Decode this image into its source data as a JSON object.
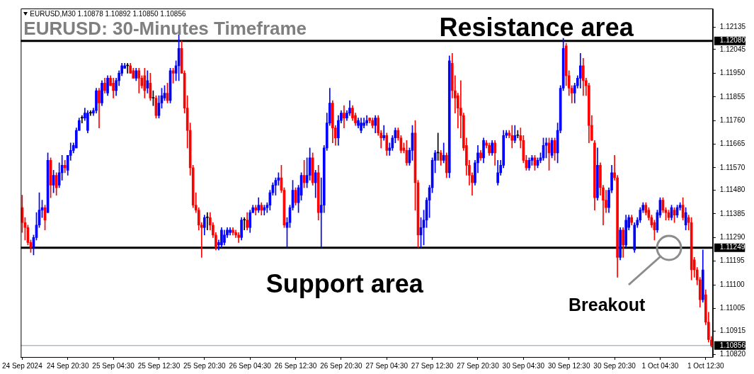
{
  "chart_data": {
    "type": "candlestick",
    "title": "EURUSD: 30-Minutes Timeframe",
    "annotations": [
      "EURUSD,M30 1.10878 1.10892 1.10850 1.10856",
      {
        "text": "Breakout",
        "y": 1.11249
      }
    ],
    "categories": [
      "24 Sep 2024",
      null,
      null,
      null,
      null,
      null,
      null,
      null,
      null,
      null,
      null,
      null,
      null,
      null,
      null,
      null,
      "24 Sep 20:30",
      null,
      null,
      null,
      null,
      null,
      null,
      null,
      null,
      null,
      null,
      null,
      null,
      null,
      null,
      null,
      "25 Sep 04:30",
      null,
      null,
      null,
      null,
      null,
      null,
      null,
      null,
      null,
      null,
      null,
      null,
      null,
      null,
      null,
      "25 Sep 12:30",
      null,
      null,
      null,
      null,
      null,
      null,
      null,
      null,
      null,
      null,
      null,
      null,
      null,
      null,
      null,
      "25 Sep 20:30",
      null,
      null,
      null,
      null,
      null,
      null,
      null,
      null,
      null,
      null,
      null,
      null,
      null,
      null,
      null,
      "26 Sep 04:30",
      null,
      null,
      null,
      null,
      null,
      null,
      null,
      null,
      null,
      null,
      null,
      null,
      null,
      null,
      null,
      "26 Sep 12:30",
      null,
      null,
      null,
      null,
      null,
      null,
      null,
      null,
      null,
      null,
      null,
      null,
      null,
      null,
      null,
      "26 Sep 20:30",
      null,
      null,
      null,
      null,
      null,
      null,
      null,
      null,
      null,
      null,
      null,
      null,
      null,
      null,
      null,
      "27 Sep 04:30",
      null,
      null,
      null,
      null,
      null,
      null,
      null,
      null,
      null,
      null,
      null,
      null,
      null,
      null,
      null,
      "27 Sep 12:30",
      null,
      null,
      null,
      null,
      null,
      null,
      null,
      null,
      null,
      null,
      null,
      null,
      null,
      null,
      null,
      "27 Sep 20:30",
      null,
      null,
      null,
      null,
      null,
      null,
      null,
      null,
      null,
      null,
      null,
      null,
      null,
      null,
      null,
      "30 Sep 04:30",
      null,
      null,
      null,
      null,
      null,
      null,
      null,
      null,
      null,
      null,
      null,
      null,
      null,
      null,
      null,
      "30 Sep 12:30",
      null,
      null,
      null,
      null,
      null,
      null,
      null,
      null,
      null,
      null,
      null,
      null,
      null,
      null,
      null,
      "30 Sep 20:30",
      null,
      null,
      null,
      null,
      null,
      null,
      null,
      null,
      null,
      null,
      null,
      null,
      null,
      null,
      null,
      "1 Oct 04:30",
      null,
      null,
      null,
      null,
      null,
      null,
      null,
      null,
      null,
      null,
      null,
      null,
      null,
      null,
      null,
      "1 Oct 12:30",
      null,
      null
    ],
    "ohlc": [
      [
        1.1141,
        1.1146,
        1.1131,
        1.1135
      ],
      [
        1.1135,
        1.1137,
        1.1128,
        1.1133
      ],
      [
        1.1133,
        1.1134,
        1.1126,
        1.1127
      ],
      [
        1.1127,
        1.1128,
        1.1123,
        1.1125
      ],
      [
        1.1125,
        1.113,
        1.1122,
        1.1129
      ],
      [
        1.1129,
        1.1139,
        1.1128,
        1.1134
      ],
      [
        1.1134,
        1.1147,
        1.1133,
        1.114
      ],
      [
        1.114,
        1.1144,
        1.1137,
        1.1141
      ],
      [
        1.1141,
        1.1142,
        1.1132,
        1.1136
      ],
      [
        1.1139,
        1.1163,
        1.1139,
        1.116
      ],
      [
        1.116,
        1.1161,
        1.1145,
        1.115
      ],
      [
        1.115,
        1.1156,
        1.1147,
        1.1154
      ],
      [
        1.1154,
        1.1155,
        1.1146,
        1.1149
      ],
      [
        1.115,
        1.1159,
        1.1149,
        1.1155
      ],
      [
        1.1155,
        1.1162,
        1.1152,
        1.1158
      ],
      [
        1.1158,
        1.116,
        1.1155,
        1.1157
      ],
      [
        1.1156,
        1.1162,
        1.1154,
        1.1162
      ],
      [
        1.1162,
        1.1167,
        1.116,
        1.1164
      ],
      [
        1.1164,
        1.1167,
        1.1163,
        1.1166
      ],
      [
        1.1165,
        1.1173,
        1.1165,
        1.1172
      ],
      [
        1.1172,
        1.1177,
        1.1172,
        1.1176
      ],
      [
        1.1177,
        1.1178,
        1.1175,
        1.1177
      ],
      [
        1.1177,
        1.1181,
        1.1176,
        1.1179
      ],
      [
        1.1172,
        1.118,
        1.1171,
        1.1179
      ],
      [
        1.1179,
        1.118,
        1.1178,
        1.1179
      ],
      [
        1.1179,
        1.1181,
        1.1178,
        1.118
      ],
      [
        1.118,
        1.1189,
        1.1179,
        1.1188
      ],
      [
        1.1188,
        1.1189,
        1.1173,
        1.1183
      ],
      [
        1.1183,
        1.1192,
        1.1182,
        1.1191
      ],
      [
        1.1191,
        1.1193,
        1.1187,
        1.1188
      ],
      [
        1.1187,
        1.1194,
        1.1186,
        1.1193
      ],
      [
        1.1193,
        1.1194,
        1.119,
        1.119
      ],
      [
        1.1191,
        1.1193,
        1.1185,
        1.1188
      ],
      [
        1.1188,
        1.1193,
        1.1186,
        1.1192
      ],
      [
        1.1192,
        1.1196,
        1.119,
        1.1195
      ],
      [
        1.1195,
        1.1199,
        1.1194,
        1.1198
      ],
      [
        1.1197,
        1.1199,
        1.1197,
        1.1198
      ],
      [
        1.1198,
        1.1199,
        1.1195,
        1.1198
      ],
      [
        1.1198,
        1.1199,
        1.1195,
        1.1195
      ],
      [
        1.1196,
        1.1197,
        1.1193,
        1.1193
      ],
      [
        1.1193,
        1.1197,
        1.1192,
        1.1196
      ],
      [
        1.1196,
        1.1197,
        1.1187,
        1.1193
      ],
      [
        1.1193,
        1.1194,
        1.1189,
        1.119
      ],
      [
        1.1194,
        1.1197,
        1.1185,
        1.1188
      ],
      [
        1.1189,
        1.1196,
        1.1187,
        1.1192
      ],
      [
        1.1191,
        1.1195,
        1.1184,
        1.1185
      ],
      [
        1.1185,
        1.1188,
        1.1182,
        1.1185
      ],
      [
        1.1185,
        1.1186,
        1.1177,
        1.1178
      ],
      [
        1.1178,
        1.1186,
        1.1177,
        1.1183
      ],
      [
        1.1183,
        1.1189,
        1.1181,
        1.1186
      ],
      [
        1.1185,
        1.119,
        1.1184,
        1.1187
      ],
      [
        1.1187,
        1.1191,
        1.1183,
        1.1184
      ],
      [
        1.1184,
        1.1197,
        1.1183,
        1.1196
      ],
      [
        1.1196,
        1.1197,
        1.1191,
        1.1195
      ],
      [
        1.1195,
        1.12,
        1.1192,
        1.1198
      ],
      [
        1.1198,
        1.1211,
        1.1192,
        1.1205
      ],
      [
        1.1205,
        1.1208,
        1.1195,
        1.1195
      ],
      [
        1.1195,
        1.1196,
        1.1179,
        1.1181
      ],
      [
        1.1181,
        1.1186,
        1.1165,
        1.1172
      ],
      [
        1.1172,
        1.1175,
        1.1154,
        1.1157
      ],
      [
        1.1157,
        1.1158,
        1.1141,
        1.1142
      ],
      [
        1.1142,
        1.1147,
        1.1139,
        1.114
      ],
      [
        1.114,
        1.1141,
        1.1132,
        1.1134
      ],
      [
        1.1134,
        1.1135,
        1.1121,
        1.1133
      ],
      [
        1.1133,
        1.1138,
        1.113,
        1.1137
      ],
      [
        1.1137,
        1.1139,
        1.1132,
        1.1137
      ],
      [
        1.1137,
        1.1139,
        1.1132,
        1.1134
      ],
      [
        1.1134,
        1.1135,
        1.1129,
        1.113
      ],
      [
        1.113,
        1.1131,
        1.1124,
        1.1125
      ],
      [
        1.1126,
        1.1128,
        1.1124,
        1.1127
      ],
      [
        1.1126,
        1.1133,
        1.1125,
        1.1132
      ],
      [
        1.1127,
        1.1132,
        1.1126,
        1.113
      ],
      [
        1.113,
        1.1133,
        1.1129,
        1.1132
      ],
      [
        1.1131,
        1.1133,
        1.113,
        1.1132
      ],
      [
        1.1132,
        1.1133,
        1.113,
        1.1131
      ],
      [
        1.1131,
        1.1132,
        1.1129,
        1.113
      ],
      [
        1.113,
        1.1131,
        1.1127,
        1.1129
      ],
      [
        1.1129,
        1.1137,
        1.1128,
        1.1136
      ],
      [
        1.1136,
        1.1137,
        1.1132,
        1.1136
      ],
      [
        1.1136,
        1.1139,
        1.1132,
        1.1133
      ],
      [
        1.1133,
        1.114,
        1.1131,
        1.1139
      ],
      [
        1.1139,
        1.1142,
        1.1139,
        1.1141
      ],
      [
        1.1141,
        1.1142,
        1.1138,
        1.114
      ],
      [
        1.114,
        1.1145,
        1.1139,
        1.1142
      ],
      [
        1.1142,
        1.1143,
        1.1138,
        1.114
      ],
      [
        1.114,
        1.1142,
        1.1138,
        1.1141
      ],
      [
        1.1141,
        1.1143,
        1.1139,
        1.1142
      ],
      [
        1.1142,
        1.1148,
        1.114,
        1.1147
      ],
      [
        1.1147,
        1.1151,
        1.1146,
        1.115
      ],
      [
        1.115,
        1.1153,
        1.1146,
        1.1152
      ],
      [
        1.1152,
        1.1155,
        1.115,
        1.1153
      ],
      [
        1.1153,
        1.1158,
        1.1147,
        1.1148
      ],
      [
        1.1148,
        1.1149,
        1.1133,
        1.1134
      ],
      [
        1.1133,
        1.1137,
        1.1125,
        1.1135
      ],
      [
        1.1135,
        1.1142,
        1.1133,
        1.1141
      ],
      [
        1.1141,
        1.1152,
        1.114,
        1.1148
      ],
      [
        1.1148,
        1.1149,
        1.1142,
        1.1143
      ],
      [
        1.1143,
        1.115,
        1.1139,
        1.1149
      ],
      [
        1.1146,
        1.1155,
        1.1144,
        1.1154
      ],
      [
        1.1154,
        1.116,
        1.1149,
        1.1151
      ],
      [
        1.1151,
        1.1161,
        1.1149,
        1.1154
      ],
      [
        1.1154,
        1.1165,
        1.1152,
        1.1161
      ],
      [
        1.1161,
        1.1163,
        1.115,
        1.1151
      ],
      [
        1.1151,
        1.1156,
        1.1145,
        1.1155
      ],
      [
        1.1155,
        1.1158,
        1.1136,
        1.1139
      ],
      [
        1.1139,
        1.1153,
        1.1125,
        1.1142
      ],
      [
        1.1142,
        1.1166,
        1.1139,
        1.1165
      ],
      [
        1.1165,
        1.1179,
        1.1164,
        1.1175
      ],
      [
        1.1175,
        1.1189,
        1.1174,
        1.1183
      ],
      [
        1.1183,
        1.1184,
        1.1167,
        1.1173
      ],
      [
        1.1173,
        1.1174,
        1.1166,
        1.1169
      ],
      [
        1.1169,
        1.1178,
        1.1166,
        1.1176
      ],
      [
        1.1176,
        1.118,
        1.1175,
        1.1179
      ],
      [
        1.1179,
        1.1182,
        1.1173,
        1.1177
      ],
      [
        1.1177,
        1.118,
        1.1176,
        1.1179
      ],
      [
        1.1179,
        1.1184,
        1.1178,
        1.1181
      ],
      [
        1.1181,
        1.1182,
        1.1176,
        1.1177
      ],
      [
        1.1178,
        1.1179,
        1.1174,
        1.1175
      ],
      [
        1.1174,
        1.1177,
        1.1173,
        1.1176
      ],
      [
        1.1172,
        1.1177,
        1.1171,
        1.1175
      ],
      [
        1.1174,
        1.1177,
        1.1173,
        1.1175
      ],
      [
        1.1175,
        1.1178,
        1.1174,
        1.1176
      ],
      [
        1.1177,
        1.1177,
        1.1175,
        1.1176
      ],
      [
        1.1176,
        1.1177,
        1.1173,
        1.1174
      ],
      [
        1.1174,
        1.1178,
        1.1171,
        1.1177
      ],
      [
        1.1177,
        1.1178,
        1.117,
        1.1171
      ],
      [
        1.1171,
        1.1172,
        1.1165,
        1.1169
      ],
      [
        1.1169,
        1.1174,
        1.1168,
        1.117
      ],
      [
        1.117,
        1.1171,
        1.1162,
        1.1164
      ],
      [
        1.1164,
        1.1167,
        1.1162,
        1.1165
      ],
      [
        1.1165,
        1.117,
        1.1164,
        1.1169
      ],
      [
        1.1169,
        1.1173,
        1.1167,
        1.1172
      ],
      [
        1.1172,
        1.1173,
        1.1168,
        1.1169
      ],
      [
        1.1169,
        1.117,
        1.1163,
        1.1164
      ],
      [
        1.1165,
        1.1167,
        1.1163,
        1.1164
      ],
      [
        1.1164,
        1.1168,
        1.1158,
        1.1159
      ],
      [
        1.1159,
        1.1165,
        1.1158,
        1.1164
      ],
      [
        1.1164,
        1.1174,
        1.116,
        1.1171
      ],
      [
        1.1171,
        1.1176,
        1.114,
        1.1151
      ],
      [
        1.1151,
        1.1152,
        1.1125,
        1.113
      ],
      [
        1.113,
        1.1137,
        1.1125,
        1.1133
      ],
      [
        1.1133,
        1.114,
        1.1126,
        1.1136
      ],
      [
        1.1136,
        1.1145,
        1.1133,
        1.1144
      ],
      [
        1.1144,
        1.115,
        1.1137,
        1.1149
      ],
      [
        1.1149,
        1.1161,
        1.1147,
        1.116
      ],
      [
        1.116,
        1.1164,
        1.1155,
        1.1163
      ],
      [
        1.1163,
        1.1171,
        1.116,
        1.1163
      ],
      [
        1.1163,
        1.1164,
        1.1158,
        1.116
      ],
      [
        1.116,
        1.1167,
        1.1159,
        1.1162
      ],
      [
        1.1162,
        1.1163,
        1.1153,
        1.1155
      ],
      [
        1.1155,
        1.1202,
        1.1153,
        1.12
      ],
      [
        1.1199,
        1.1203,
        1.1185,
        1.1188
      ],
      [
        1.1188,
        1.1194,
        1.1179,
        1.1185
      ],
      [
        1.1186,
        1.1187,
        1.1173,
        1.1181
      ],
      [
        1.1181,
        1.1192,
        1.1169,
        1.1178
      ],
      [
        1.1178,
        1.1179,
        1.1164,
        1.1165
      ],
      [
        1.1166,
        1.1169,
        1.1154,
        1.1158
      ],
      [
        1.1158,
        1.116,
        1.115,
        1.1154
      ],
      [
        1.1154,
        1.1155,
        1.1146,
        1.1151
      ],
      [
        1.1151,
        1.116,
        1.115,
        1.1159
      ],
      [
        1.1159,
        1.1166,
        1.1155,
        1.1163
      ],
      [
        1.1163,
        1.1164,
        1.116,
        1.1161
      ],
      [
        1.1161,
        1.1169,
        1.1159,
        1.1168
      ],
      [
        1.1167,
        1.1168,
        1.1165,
        1.1166
      ],
      [
        1.1166,
        1.1167,
        1.1162,
        1.1163
      ],
      [
        1.1163,
        1.1168,
        1.1162,
        1.1167
      ],
      [
        1.1167,
        1.1168,
        1.1158,
        1.1163
      ],
      [
        1.1151,
        1.116,
        1.115,
        1.1155
      ],
      [
        1.1155,
        1.116,
        1.1154,
        1.1158
      ],
      [
        1.1158,
        1.1172,
        1.1157,
        1.117
      ],
      [
        1.117,
        1.1172,
        1.1169,
        1.1171
      ],
      [
        1.1171,
        1.1172,
        1.1169,
        1.117
      ],
      [
        1.117,
        1.1174,
        1.1165,
        1.1168
      ],
      [
        1.1168,
        1.1174,
        1.1167,
        1.117
      ],
      [
        1.117,
        1.1172,
        1.1169,
        1.117
      ],
      [
        1.117,
        1.1173,
        1.1165,
        1.1168
      ],
      [
        1.1168,
        1.117,
        1.1159,
        1.116
      ],
      [
        1.116,
        1.1162,
        1.1156,
        1.1157
      ],
      [
        1.1157,
        1.1161,
        1.1156,
        1.116
      ],
      [
        1.116,
        1.1162,
        1.1158,
        1.1161
      ],
      [
        1.1161,
        1.1162,
        1.1156,
        1.1158
      ],
      [
        1.1158,
        1.1161,
        1.1157,
        1.116
      ],
      [
        1.116,
        1.1163,
        1.1159,
        1.1161
      ],
      [
        1.1161,
        1.1169,
        1.116,
        1.1166
      ],
      [
        1.1166,
        1.1169,
        1.1161,
        1.1167
      ],
      [
        1.1167,
        1.1169,
        1.1156,
        1.1163
      ],
      [
        1.1162,
        1.1169,
        1.1161,
        1.1168
      ],
      [
        1.1168,
        1.1169,
        1.116,
        1.1163
      ],
      [
        1.1163,
        1.1175,
        1.1159,
        1.1172
      ],
      [
        1.1172,
        1.119,
        1.1171,
        1.1189
      ],
      [
        1.1189,
        1.1209,
        1.1188,
        1.1205
      ],
      [
        1.1206,
        1.1207,
        1.119,
        1.1194
      ],
      [
        1.1194,
        1.1196,
        1.1186,
        1.1189
      ],
      [
        1.1189,
        1.119,
        1.1183,
        1.1187
      ],
      [
        1.1187,
        1.1191,
        1.1183,
        1.119
      ],
      [
        1.119,
        1.1194,
        1.1189,
        1.1193
      ],
      [
        1.1193,
        1.1203,
        1.1189,
        1.1198
      ],
      [
        1.1198,
        1.1201,
        1.1186,
        1.1192
      ],
      [
        1.1192,
        1.1193,
        1.1186,
        1.119
      ],
      [
        1.119,
        1.1191,
        1.1167,
        1.1174
      ],
      [
        1.1174,
        1.1178,
        1.1168,
        1.1168
      ],
      [
        1.1167,
        1.1168,
        1.114,
        1.1145
      ],
      [
        1.1145,
        1.1165,
        1.1144,
        1.1158
      ],
      [
        1.1158,
        1.1159,
        1.1146,
        1.1149
      ],
      [
        1.1149,
        1.115,
        1.1134,
        1.1144
      ],
      [
        1.1144,
        1.1148,
        1.1139,
        1.1141
      ],
      [
        1.1141,
        1.1149,
        1.1139,
        1.1148
      ],
      [
        1.1148,
        1.1158,
        1.1147,
        1.1155
      ],
      [
        1.1155,
        1.1162,
        1.1152,
        1.1153
      ],
      [
        1.1153,
        1.1154,
        1.1113,
        1.1121
      ],
      [
        1.1121,
        1.1133,
        1.112,
        1.1132
      ],
      [
        1.1132,
        1.1133,
        1.1121,
        1.1126
      ],
      [
        1.1126,
        1.1138,
        1.1125,
        1.1136
      ],
      [
        1.1133,
        1.1138,
        1.1132,
        1.1137
      ],
      [
        1.1137,
        1.1138,
        1.1134,
        1.1135
      ],
      [
        1.1124,
        1.1135,
        1.1123,
        1.1134
      ],
      [
        1.1134,
        1.1137,
        1.1133,
        1.1136
      ],
      [
        1.1136,
        1.1141,
        1.1135,
        1.114
      ],
      [
        1.114,
        1.1143,
        1.1139,
        1.1142
      ],
      [
        1.1142,
        1.1143,
        1.1138,
        1.1139
      ],
      [
        1.114,
        1.1141,
        1.1136,
        1.1137
      ],
      [
        1.1137,
        1.1138,
        1.1133,
        1.1134
      ],
      [
        1.1135,
        1.1136,
        1.1128,
        1.1132
      ],
      [
        1.1132,
        1.114,
        1.1131,
        1.1139
      ],
      [
        1.1138,
        1.1145,
        1.1137,
        1.1144
      ],
      [
        1.1144,
        1.1145,
        1.1139,
        1.114
      ],
      [
        1.114,
        1.1141,
        1.1136,
        1.1139
      ],
      [
        1.1139,
        1.114,
        1.1136,
        1.1137
      ],
      [
        1.1137,
        1.1142,
        1.1136,
        1.1141
      ],
      [
        1.114,
        1.1141,
        1.1135,
        1.1138
      ],
      [
        1.1138,
        1.1142,
        1.1137,
        1.1141
      ],
      [
        1.1141,
        1.1143,
        1.114,
        1.1142
      ],
      [
        1.1142,
        1.1145,
        1.1136,
        1.1137
      ],
      [
        1.1134,
        1.1141,
        1.1132,
        1.1139
      ],
      [
        1.1137,
        1.1138,
        1.1132,
        1.1135
      ],
      [
        1.1135,
        1.1137,
        1.1112,
        1.1116
      ],
      [
        1.112,
        1.1121,
        1.1113,
        1.1116
      ],
      [
        1.1116,
        1.1117,
        1.111,
        1.1112
      ],
      [
        1.1112,
        1.1113,
        1.1101,
        1.1104
      ],
      [
        1.1104,
        1.1124,
        1.1103,
        1.1116
      ],
      [
        1.1106,
        1.1108,
        1.1094,
        1.1095
      ],
      [
        1.1095,
        1.1099,
        1.1087,
        1.1088
      ],
      [
        1.10878,
        1.10892,
        1.1085,
        1.10856
      ]
    ],
    "ylim": [
      1.1081,
      1.1221
    ],
    "yticks": [
      1.12135,
      {
        "value": 1.1208,
        "label": "1.12080"
      },
      1.12045,
      {
        "value": 1.1195,
        "label": "1.11950"
      },
      1.11855,
      {
        "value": 1.1176,
        "label": "1.11760"
      },
      1.11665,
      {
        "value": 1.1157,
        "label": "1.11570"
      },
      {
        "value": 1.1148,
        "label": "1.11480"
      },
      1.11385,
      {
        "value": 1.1129,
        "label": "1.11290"
      },
      1.11249,
      1.11195,
      {
        "value": 1.111,
        "label": "1.11100"
      },
      1.11005,
      1.10915,
      1.10856,
      {
        "value": 1.1082,
        "label": "1.10820"
      }
    ],
    "ref_lines": [
      {
        "axis": "y",
        "value": 1.1208,
        "label": "Resistance area",
        "color": "#000000"
      },
      {
        "axis": "y",
        "value": 1.11249,
        "label": "Support area",
        "color": "#000000"
      },
      {
        "axis": "y",
        "value": 1.10856,
        "color": "#8a99a6"
      }
    ]
  }
}
